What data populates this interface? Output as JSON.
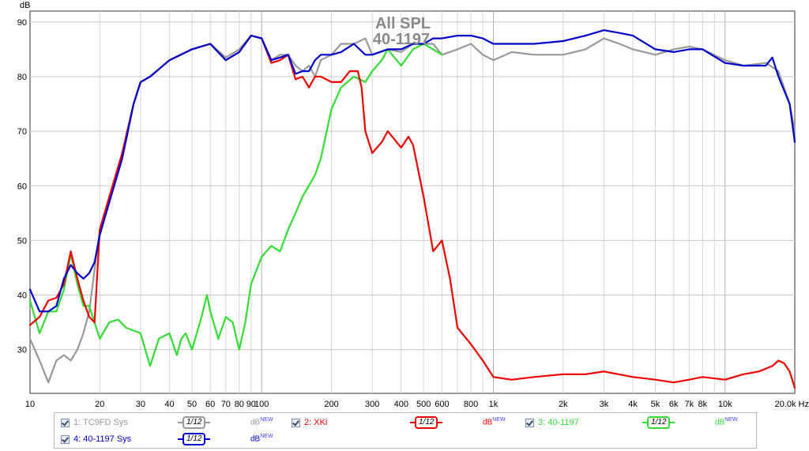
{
  "chart_data": {
    "type": "line",
    "title": "All SPL",
    "subtitle": "40-1197",
    "ylabel": "dB",
    "xlabel": "",
    "x_unit": "Hz",
    "x_scale": "log",
    "xlim": [
      10,
      20000
    ],
    "ylim": [
      22,
      92
    ],
    "grid": true,
    "y_ticks": [
      "30",
      "40",
      "50",
      "60",
      "70",
      "80",
      "90"
    ],
    "x_ticks": [
      {
        "v": 10,
        "label": "10"
      },
      {
        "v": 20,
        "label": "20"
      },
      {
        "v": 30,
        "label": "30"
      },
      {
        "v": 40,
        "label": "40"
      },
      {
        "v": 50,
        "label": "50"
      },
      {
        "v": 60,
        "label": "60"
      },
      {
        "v": 70,
        "label": "70"
      },
      {
        "v": 80,
        "label": "80"
      },
      {
        "v": 90,
        "label": "90"
      },
      {
        "v": 100,
        "label": "100"
      },
      {
        "v": 200,
        "label": "200"
      },
      {
        "v": 300,
        "label": "300"
      },
      {
        "v": 400,
        "label": "400"
      },
      {
        "v": 500,
        "label": "500"
      },
      {
        "v": 600,
        "label": "600"
      },
      {
        "v": 800,
        "label": "800"
      },
      {
        "v": 1000,
        "label": "1k"
      },
      {
        "v": 2000,
        "label": "2k"
      },
      {
        "v": 3000,
        "label": "3k"
      },
      {
        "v": 4000,
        "label": "4k"
      },
      {
        "v": 5000,
        "label": "5k"
      },
      {
        "v": 6000,
        "label": "6k"
      },
      {
        "v": 7000,
        "label": "7k"
      },
      {
        "v": 8000,
        "label": "8k"
      },
      {
        "v": 10000,
        "label": "10k"
      },
      {
        "v": 20000,
        "label": "20.0k Hz"
      }
    ],
    "series": [
      {
        "name": "1: TC9FD Sys",
        "color": "#999999",
        "points": [
          [
            10,
            32
          ],
          [
            11,
            28
          ],
          [
            12,
            24
          ],
          [
            13,
            28
          ],
          [
            14,
            29
          ],
          [
            15,
            28
          ],
          [
            16,
            30
          ],
          [
            17,
            33
          ],
          [
            18,
            37
          ],
          [
            20,
            52
          ],
          [
            22,
            58
          ],
          [
            25,
            66
          ],
          [
            28,
            75
          ],
          [
            30,
            79
          ],
          [
            33,
            80
          ],
          [
            40,
            83
          ],
          [
            50,
            85
          ],
          [
            60,
            86
          ],
          [
            70,
            83.5
          ],
          [
            80,
            85
          ],
          [
            90,
            87.5
          ],
          [
            100,
            87
          ],
          [
            110,
            83
          ],
          [
            120,
            84
          ],
          [
            130,
            84
          ],
          [
            140,
            82
          ],
          [
            150,
            81
          ],
          [
            160,
            82
          ],
          [
            170,
            80
          ],
          [
            180,
            83
          ],
          [
            200,
            84
          ],
          [
            220,
            86
          ],
          [
            250,
            86
          ],
          [
            280,
            87
          ],
          [
            300,
            84
          ],
          [
            350,
            85
          ],
          [
            400,
            84.5
          ],
          [
            450,
            86
          ],
          [
            500,
            86
          ],
          [
            550,
            86
          ],
          [
            600,
            84
          ],
          [
            700,
            85
          ],
          [
            800,
            86
          ],
          [
            900,
            84
          ],
          [
            1000,
            83
          ],
          [
            1200,
            84.5
          ],
          [
            1500,
            84
          ],
          [
            2000,
            84
          ],
          [
            2500,
            85
          ],
          [
            3000,
            87
          ],
          [
            3500,
            86
          ],
          [
            4000,
            85
          ],
          [
            5000,
            84
          ],
          [
            6000,
            85
          ],
          [
            7000,
            85.5
          ],
          [
            8000,
            85
          ],
          [
            10000,
            83
          ],
          [
            12000,
            82
          ],
          [
            15000,
            82.5
          ],
          [
            17000,
            81
          ],
          [
            19000,
            75
          ],
          [
            20000,
            70
          ]
        ]
      },
      {
        "name": "2: XKi",
        "color": "#ee0000",
        "points": [
          [
            10,
            34.5
          ],
          [
            11,
            36
          ],
          [
            12,
            39
          ],
          [
            13,
            39.5
          ],
          [
            14,
            42
          ],
          [
            15,
            48
          ],
          [
            16,
            43
          ],
          [
            17,
            39
          ],
          [
            18,
            36
          ],
          [
            19,
            35
          ],
          [
            20,
            52
          ],
          [
            22,
            58
          ],
          [
            25,
            66
          ],
          [
            28,
            75
          ],
          [
            30,
            79
          ],
          [
            33,
            80
          ],
          [
            40,
            83
          ],
          [
            50,
            85
          ],
          [
            60,
            86
          ],
          [
            70,
            83
          ],
          [
            80,
            84.5
          ],
          [
            90,
            87.5
          ],
          [
            100,
            87
          ],
          [
            110,
            82.5
          ],
          [
            120,
            83
          ],
          [
            130,
            84
          ],
          [
            140,
            79.5
          ],
          [
            150,
            80
          ],
          [
            160,
            78
          ],
          [
            170,
            80
          ],
          [
            180,
            80
          ],
          [
            200,
            79
          ],
          [
            220,
            79
          ],
          [
            240,
            81
          ],
          [
            260,
            81
          ],
          [
            270,
            78
          ],
          [
            280,
            70
          ],
          [
            300,
            66
          ],
          [
            330,
            68
          ],
          [
            350,
            70
          ],
          [
            400,
            67
          ],
          [
            430,
            69
          ],
          [
            450,
            67.5
          ],
          [
            500,
            58
          ],
          [
            550,
            48
          ],
          [
            600,
            50
          ],
          [
            650,
            43
          ],
          [
            700,
            34
          ],
          [
            800,
            31
          ],
          [
            900,
            28
          ],
          [
            1000,
            25
          ],
          [
            1200,
            24.5
          ],
          [
            1500,
            25
          ],
          [
            2000,
            25.5
          ],
          [
            2500,
            25.5
          ],
          [
            3000,
            26
          ],
          [
            4000,
            25
          ],
          [
            5000,
            24.5
          ],
          [
            6000,
            24
          ],
          [
            7000,
            24.5
          ],
          [
            8000,
            25
          ],
          [
            10000,
            24.5
          ],
          [
            12000,
            25.5
          ],
          [
            14000,
            26
          ],
          [
            16000,
            27
          ],
          [
            17000,
            28
          ],
          [
            18000,
            27.5
          ],
          [
            19000,
            26
          ],
          [
            20000,
            23
          ]
        ]
      },
      {
        "name": "3: 40-1197",
        "color": "#33dd33",
        "points": [
          [
            10,
            39
          ],
          [
            11,
            33
          ],
          [
            12,
            37
          ],
          [
            13,
            37
          ],
          [
            14,
            41
          ],
          [
            15,
            47.5
          ],
          [
            16,
            42
          ],
          [
            17,
            38
          ],
          [
            18,
            38
          ],
          [
            19,
            35
          ],
          [
            20,
            32
          ],
          [
            22,
            35
          ],
          [
            24,
            35.5
          ],
          [
            26,
            34
          ],
          [
            28,
            33.5
          ],
          [
            30,
            33
          ],
          [
            33,
            27
          ],
          [
            36,
            32
          ],
          [
            40,
            33
          ],
          [
            43,
            29
          ],
          [
            45,
            32
          ],
          [
            47,
            33
          ],
          [
            50,
            30
          ],
          [
            55,
            36
          ],
          [
            58,
            40
          ],
          [
            60,
            37
          ],
          [
            65,
            32
          ],
          [
            70,
            36
          ],
          [
            75,
            35
          ],
          [
            80,
            30
          ],
          [
            85,
            35
          ],
          [
            90,
            42
          ],
          [
            100,
            47
          ],
          [
            110,
            49
          ],
          [
            120,
            48
          ],
          [
            130,
            52
          ],
          [
            140,
            55
          ],
          [
            150,
            58
          ],
          [
            170,
            62
          ],
          [
            180,
            65
          ],
          [
            200,
            74
          ],
          [
            220,
            78
          ],
          [
            250,
            80
          ],
          [
            280,
            79
          ],
          [
            300,
            81
          ],
          [
            330,
            83
          ],
          [
            350,
            85
          ],
          [
            400,
            82
          ],
          [
            450,
            85
          ],
          [
            500,
            86
          ],
          [
            550,
            85
          ],
          [
            600,
            84
          ]
        ]
      },
      {
        "name": "4: 40-1197 Sys",
        "color": "#0000cc",
        "points": [
          [
            10,
            41
          ],
          [
            11,
            37
          ],
          [
            12,
            37
          ],
          [
            13,
            38
          ],
          [
            14,
            43
          ],
          [
            15,
            45.5
          ],
          [
            16,
            44
          ],
          [
            17,
            43
          ],
          [
            18,
            44
          ],
          [
            19,
            46
          ],
          [
            20,
            51
          ],
          [
            22,
            57
          ],
          [
            25,
            65
          ],
          [
            28,
            75
          ],
          [
            30,
            79
          ],
          [
            33,
            80
          ],
          [
            40,
            83
          ],
          [
            50,
            85
          ],
          [
            60,
            86
          ],
          [
            70,
            83
          ],
          [
            80,
            84.5
          ],
          [
            90,
            87.5
          ],
          [
            100,
            87
          ],
          [
            110,
            83
          ],
          [
            120,
            83.5
          ],
          [
            130,
            84
          ],
          [
            140,
            80.5
          ],
          [
            150,
            81
          ],
          [
            160,
            81
          ],
          [
            170,
            83
          ],
          [
            180,
            84
          ],
          [
            200,
            84
          ],
          [
            220,
            84.5
          ],
          [
            250,
            86
          ],
          [
            280,
            84
          ],
          [
            300,
            84
          ],
          [
            350,
            85
          ],
          [
            400,
            85
          ],
          [
            450,
            86
          ],
          [
            500,
            86
          ],
          [
            550,
            87
          ],
          [
            600,
            87
          ],
          [
            700,
            87.5
          ],
          [
            800,
            87.5
          ],
          [
            900,
            87
          ],
          [
            1000,
            86
          ],
          [
            1200,
            86
          ],
          [
            1500,
            86
          ],
          [
            2000,
            86.5
          ],
          [
            2500,
            87.5
          ],
          [
            3000,
            88.5
          ],
          [
            3500,
            88
          ],
          [
            4000,
            87.5
          ],
          [
            5000,
            85
          ],
          [
            6000,
            84.5
          ],
          [
            7000,
            85
          ],
          [
            8000,
            85
          ],
          [
            10000,
            82.5
          ],
          [
            12000,
            82
          ],
          [
            15000,
            82
          ],
          [
            16000,
            83.5
          ],
          [
            17000,
            80
          ],
          [
            19000,
            75
          ],
          [
            20000,
            68
          ]
        ]
      }
    ]
  },
  "legend": {
    "unit_label": "dB",
    "unit_sup": "NEW",
    "items": [
      {
        "label": "1: TC9FD Sys",
        "smoothing": "1/12",
        "color": "#999999"
      },
      {
        "label": "2: XKi",
        "smoothing": "1/12",
        "color": "#ee0000"
      },
      {
        "label": "3: 40-1197",
        "smoothing": "1/12",
        "color": "#33dd33"
      },
      {
        "label": "4: 40-1197 Sys",
        "smoothing": "1/12",
        "color": "#0000cc"
      }
    ]
  }
}
